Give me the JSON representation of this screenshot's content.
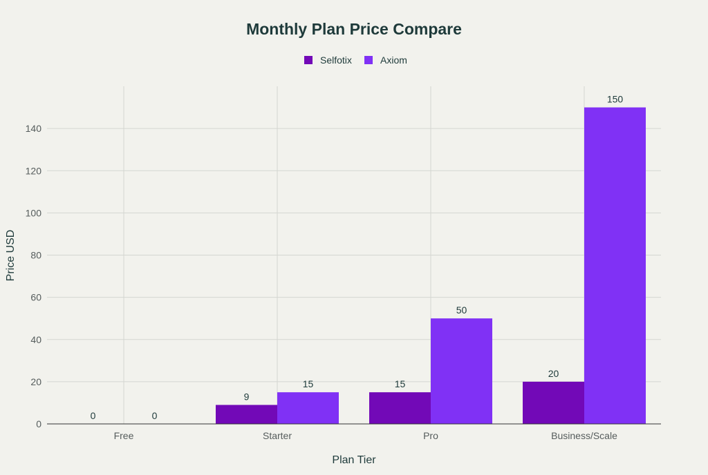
{
  "chart_data": {
    "type": "bar",
    "title": "Monthly Plan Price Compare",
    "xlabel": "Plan Tier",
    "ylabel": "Price USD",
    "categories": [
      "Free",
      "Starter",
      "Pro",
      "Business/Scale"
    ],
    "series": [
      {
        "name": "Selfotix",
        "values": [
          0,
          9,
          15,
          20
        ],
        "color": "#7209b7"
      },
      {
        "name": "Axiom",
        "values": [
          0,
          15,
          50,
          150
        ],
        "color": "#8031f5"
      }
    ],
    "ylim": [
      0,
      160
    ],
    "yticks": [
      0,
      20,
      40,
      60,
      80,
      100,
      120,
      140
    ],
    "grid": true,
    "legend_position": "top-center",
    "data_labels": true
  }
}
